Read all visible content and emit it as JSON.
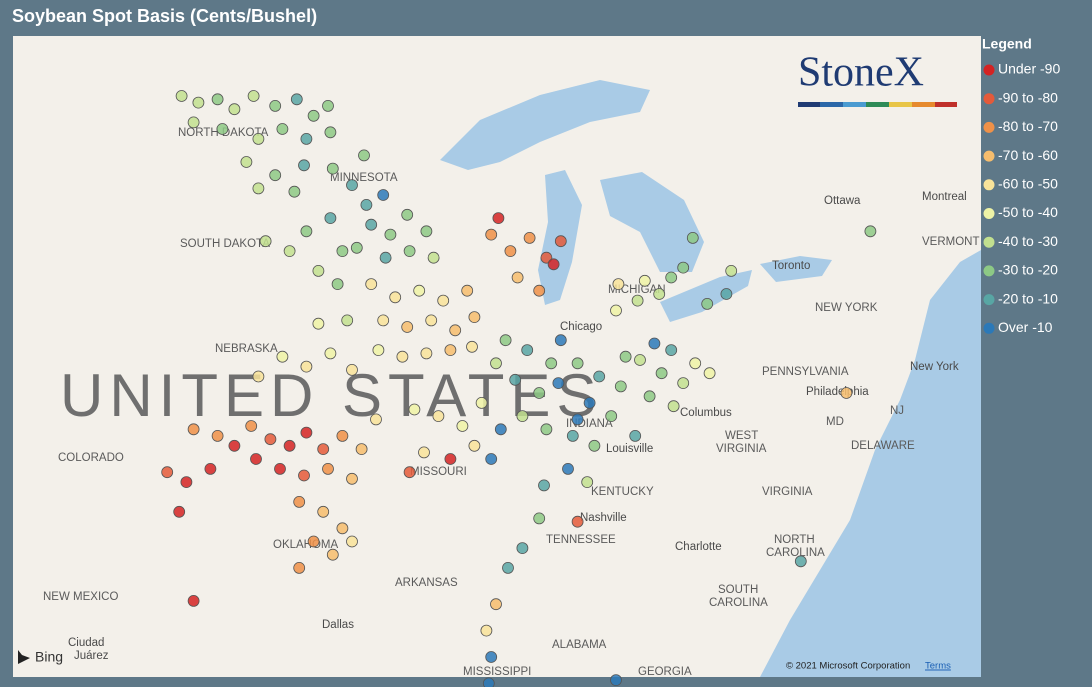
{
  "title": "Soybean Spot Basis (Cents/Bushel)",
  "logo": "StoneX",
  "bing": "Bing",
  "attribution": "© 2021 Microsoft Corporation",
  "terms": "Terms",
  "legend": {
    "title": "Legend",
    "items": [
      {
        "name": "Under -90",
        "color": "#d42323"
      },
      {
        "name": "-90 to -80",
        "color": "#e45a3a"
      },
      {
        "name": "-80 to -70",
        "color": "#ef9148"
      },
      {
        "name": "-70 to -60",
        "color": "#f6bd6d"
      },
      {
        "name": "-60 to -50",
        "color": "#f8e39a"
      },
      {
        "name": "-50 to -40",
        "color": "#eef3a6"
      },
      {
        "name": "-40 to -30",
        "color": "#c2e08f"
      },
      {
        "name": "-30 to -20",
        "color": "#8dc985"
      },
      {
        "name": "-20 to -10",
        "color": "#58a6a4"
      },
      {
        "name": "Over -10",
        "color": "#2b79b8"
      }
    ]
  },
  "map": {
    "country": "UNITED STATES",
    "labels": [
      "NORTH DAKOTA",
      "MINNESOTA",
      "SOUTH DAKOTA",
      "NEBRASKA",
      "COLORADO",
      "MISSOURI",
      "OKLAHOMA",
      "NEW MEXICO",
      "ARKANSAS",
      "KENTUCKY",
      "TENNESSEE",
      "MICHIGAN",
      "INDIANA",
      "WEST",
      "VIRGINIA",
      "VIRGINIA",
      "NORTH",
      "CAROLINA",
      "SOUTH",
      "CAROLINA",
      "PENNSYLVANIA",
      "NEW YORK",
      "ALABAMA",
      "MISSISSIPPI",
      "GEORGIA",
      "MD",
      "DELAWARE",
      "NJ",
      "VERMONT"
    ],
    "cities": [
      "Chicago",
      "Columbus",
      "Louisville",
      "Nashville",
      "Charlotte",
      "Dallas",
      "Philadelphia",
      "New York",
      "Ottawa",
      "Montreal",
      "Toronto",
      "Ciudad",
      "Juárez"
    ],
    "points": [
      [
        -103.7,
        48.9,
        6
      ],
      [
        -103,
        48.7,
        6
      ],
      [
        -102.2,
        48.8,
        7
      ],
      [
        -101.5,
        48.5,
        6
      ],
      [
        -100.7,
        48.9,
        6
      ],
      [
        -99.8,
        48.6,
        7
      ],
      [
        -98.9,
        48.8,
        8
      ],
      [
        -98.2,
        48.3,
        7
      ],
      [
        -97.6,
        48.6,
        7
      ],
      [
        -103.2,
        48.1,
        6
      ],
      [
        -102,
        47.9,
        7
      ],
      [
        -100.5,
        47.6,
        6
      ],
      [
        -99.5,
        47.9,
        7
      ],
      [
        -98.5,
        47.6,
        8
      ],
      [
        -97.5,
        47.8,
        7
      ],
      [
        -101,
        46.9,
        6
      ],
      [
        -99.8,
        46.5,
        7
      ],
      [
        -98.6,
        46.8,
        8
      ],
      [
        -97.4,
        46.7,
        7
      ],
      [
        -100.5,
        46.1,
        6
      ],
      [
        -99,
        46,
        7
      ],
      [
        -96.6,
        46.2,
        8
      ],
      [
        -96,
        45.6,
        8
      ],
      [
        -95.3,
        45.9,
        9
      ],
      [
        -95.8,
        45,
        8
      ],
      [
        -95,
        44.7,
        7
      ],
      [
        -94.3,
        45.3,
        7
      ],
      [
        -96.4,
        44.3,
        7
      ],
      [
        -95.2,
        44,
        8
      ],
      [
        -94.2,
        44.2,
        7
      ],
      [
        -93.2,
        44,
        6
      ],
      [
        -93.5,
        44.8,
        7
      ],
      [
        -96.1,
        47.1,
        7
      ],
      [
        -98.5,
        44.8,
        7
      ],
      [
        -97.5,
        45.2,
        8
      ],
      [
        -97,
        44.2,
        7
      ],
      [
        -98,
        43.6,
        6
      ],
      [
        -97.2,
        43.2,
        7
      ],
      [
        -99.2,
        44.2,
        6
      ],
      [
        -100.2,
        44.5,
        6
      ],
      [
        -95.8,
        43.2,
        4
      ],
      [
        -94.8,
        42.8,
        4
      ],
      [
        -93.8,
        43,
        5
      ],
      [
        -92.8,
        42.7,
        4
      ],
      [
        -91.8,
        43,
        3
      ],
      [
        -95.3,
        42.1,
        4
      ],
      [
        -94.3,
        41.9,
        3
      ],
      [
        -93.3,
        42.1,
        4
      ],
      [
        -92.3,
        41.8,
        3
      ],
      [
        -91.5,
        42.2,
        3
      ],
      [
        -95.5,
        41.2,
        5
      ],
      [
        -94.5,
        41,
        4
      ],
      [
        -93.5,
        41.1,
        4
      ],
      [
        -92.5,
        41.2,
        3
      ],
      [
        -91.6,
        41.3,
        4
      ],
      [
        -90.8,
        44.7,
        2
      ],
      [
        -90,
        44.2,
        2
      ],
      [
        -89.2,
        44.6,
        2
      ],
      [
        -88.5,
        44,
        1
      ],
      [
        -89.7,
        43.4,
        3
      ],
      [
        -88.8,
        43,
        2
      ],
      [
        -90.5,
        45.2,
        0
      ],
      [
        -88.2,
        43.8,
        0
      ],
      [
        -87.9,
        44.5,
        1
      ],
      [
        -99.5,
        41,
        5
      ],
      [
        -98.5,
        40.7,
        4
      ],
      [
        -97.5,
        41.1,
        5
      ],
      [
        -96.6,
        40.6,
        4
      ],
      [
        -100.5,
        40.4,
        4
      ],
      [
        -98,
        42,
        5
      ],
      [
        -96.8,
        42.1,
        6
      ],
      [
        -100.8,
        38.9,
        2
      ],
      [
        -100,
        38.5,
        1
      ],
      [
        -99.2,
        38.3,
        0
      ],
      [
        -98.5,
        38.7,
        0
      ],
      [
        -97.8,
        38.2,
        1
      ],
      [
        -97,
        38.6,
        2
      ],
      [
        -96.2,
        38.2,
        3
      ],
      [
        -100.6,
        37.9,
        0
      ],
      [
        -99.6,
        37.6,
        0
      ],
      [
        -98.6,
        37.4,
        1
      ],
      [
        -97.6,
        37.6,
        2
      ],
      [
        -96.6,
        37.3,
        3
      ],
      [
        -101.5,
        38.3,
        0
      ],
      [
        -102.5,
        37.6,
        0
      ],
      [
        -102.2,
        38.6,
        2
      ],
      [
        -95.6,
        39.1,
        4
      ],
      [
        -103.2,
        38.8,
        2
      ],
      [
        -103.5,
        37.2,
        0
      ],
      [
        -104.3,
        37.5,
        1
      ],
      [
        -103.8,
        36.3,
        0
      ],
      [
        -98.8,
        36.6,
        2
      ],
      [
        -97.8,
        36.3,
        3
      ],
      [
        -97,
        35.8,
        3
      ],
      [
        -98.2,
        35.4,
        2
      ],
      [
        -97.4,
        35,
        3
      ],
      [
        -96.6,
        35.4,
        4
      ],
      [
        -98.8,
        34.6,
        2
      ],
      [
        -103.2,
        33.6,
        0
      ],
      [
        -94,
        39.4,
        5
      ],
      [
        -93,
        39.2,
        4
      ],
      [
        -92,
        38.9,
        5
      ],
      [
        -91.2,
        39.6,
        5
      ],
      [
        -93.6,
        38.1,
        4
      ],
      [
        -92.5,
        37.9,
        0
      ],
      [
        -91.5,
        38.3,
        4
      ],
      [
        -94.2,
        37.5,
        1
      ],
      [
        -90.4,
        38.8,
        9
      ],
      [
        -90.8,
        37.9,
        9
      ],
      [
        -90.2,
        41.5,
        7
      ],
      [
        -89.3,
        41.2,
        8
      ],
      [
        -88.3,
        40.8,
        7
      ],
      [
        -89.8,
        40.3,
        8
      ],
      [
        -88.8,
        39.9,
        7
      ],
      [
        -89.5,
        39.2,
        6
      ],
      [
        -88.5,
        38.8,
        7
      ],
      [
        -88,
        40.2,
        9
      ],
      [
        -87.9,
        41.5,
        9
      ],
      [
        -90.6,
        40.8,
        6
      ],
      [
        -87.2,
        40.8,
        7
      ],
      [
        -86.3,
        40.4,
        8
      ],
      [
        -85.4,
        40.1,
        7
      ],
      [
        -86.7,
        39.6,
        9
      ],
      [
        -85.8,
        39.2,
        7
      ],
      [
        -87.4,
        38.6,
        8
      ],
      [
        -86.5,
        38.3,
        7
      ],
      [
        -85.2,
        41,
        7
      ],
      [
        -87.2,
        39.1,
        9
      ],
      [
        -84.6,
        40.9,
        6
      ],
      [
        -83.7,
        40.5,
        7
      ],
      [
        -82.8,
        40.2,
        6
      ],
      [
        -84.2,
        39.8,
        7
      ],
      [
        -83.2,
        39.5,
        6
      ],
      [
        -82.3,
        40.8,
        5
      ],
      [
        -84,
        41.4,
        9
      ],
      [
        -83.3,
        41.2,
        8
      ],
      [
        -81.7,
        40.5,
        5
      ],
      [
        -85.6,
        42.4,
        5
      ],
      [
        -84.7,
        42.7,
        6
      ],
      [
        -83.8,
        42.9,
        6
      ],
      [
        -83.3,
        43.4,
        7
      ],
      [
        -82.8,
        43.7,
        7
      ],
      [
        -84.4,
        43.3,
        5
      ],
      [
        -85.5,
        43.2,
        4
      ],
      [
        -82.4,
        44.6,
        7
      ],
      [
        -81.8,
        42.6,
        7
      ],
      [
        -80.8,
        43.6,
        6
      ],
      [
        -81,
        42.9,
        8
      ],
      [
        -88.6,
        37.1,
        8
      ],
      [
        -87.6,
        37.6,
        9
      ],
      [
        -86.8,
        37.2,
        6
      ],
      [
        -88.8,
        36.1,
        7
      ],
      [
        -89.5,
        35.2,
        8
      ],
      [
        -90.1,
        34.6,
        8
      ],
      [
        -90.6,
        33.5,
        3
      ],
      [
        -91,
        32.7,
        4
      ],
      [
        -90.8,
        31.9,
        9
      ],
      [
        -90.9,
        31.1,
        9
      ],
      [
        -87.2,
        36,
        1
      ],
      [
        -85.6,
        31.2,
        9
      ],
      [
        -77.9,
        34.8,
        8
      ],
      [
        -76,
        39.9,
        3
      ],
      [
        -75,
        44.8,
        7
      ],
      [
        -84.8,
        38.6,
        8
      ]
    ]
  }
}
